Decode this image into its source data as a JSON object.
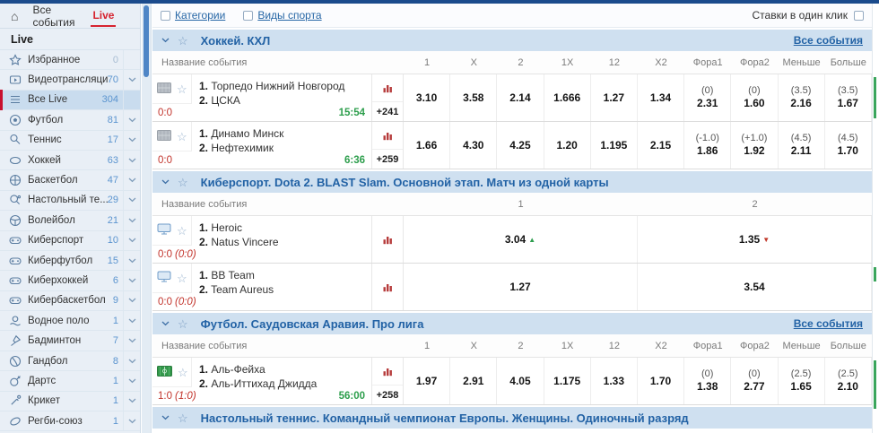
{
  "topbar": {
    "all_events_tab": "Все события",
    "live_tab": "Live"
  },
  "sidebar": {
    "live_label": "Live",
    "items": [
      {
        "icon": "star-icon",
        "label": "Избранное",
        "count": "0",
        "chevron": false,
        "selected": false
      },
      {
        "icon": "video-icon",
        "label": "Видеотрансляция",
        "count": "70",
        "chevron": true,
        "selected": false
      },
      {
        "icon": "list-icon",
        "label": "Все Live",
        "count": "304",
        "chevron": false,
        "selected": true
      },
      {
        "icon": "football-icon",
        "label": "Футбол",
        "count": "81",
        "chevron": true,
        "selected": false
      },
      {
        "icon": "tennis-icon",
        "label": "Теннис",
        "count": "17",
        "chevron": true,
        "selected": false
      },
      {
        "icon": "hockey-icon",
        "label": "Хоккей",
        "count": "63",
        "chevron": true,
        "selected": false
      },
      {
        "icon": "basketball-icon",
        "label": "Баскетбол",
        "count": "47",
        "chevron": true,
        "selected": false
      },
      {
        "icon": "table-tennis-icon",
        "label": "Настольный те...",
        "count": "29",
        "chevron": true,
        "selected": false
      },
      {
        "icon": "volleyball-icon",
        "label": "Волейбол",
        "count": "21",
        "chevron": true,
        "selected": false
      },
      {
        "icon": "gamepad-icon",
        "label": "Киберспорт",
        "count": "10",
        "chevron": true,
        "selected": false
      },
      {
        "icon": "gamepad-icon",
        "label": "Киберфутбол",
        "count": "15",
        "chevron": true,
        "selected": false
      },
      {
        "icon": "gamepad-icon",
        "label": "Киберхоккей",
        "count": "6",
        "chevron": true,
        "selected": false
      },
      {
        "icon": "gamepad-icon",
        "label": "Кибербаскетбол",
        "count": "9",
        "chevron": true,
        "selected": false
      },
      {
        "icon": "waterpolo-icon",
        "label": "Водное поло",
        "count": "1",
        "chevron": true,
        "selected": false
      },
      {
        "icon": "badminton-icon",
        "label": "Бадминтон",
        "count": "7",
        "chevron": true,
        "selected": false
      },
      {
        "icon": "handball-icon",
        "label": "Гандбол",
        "count": "8",
        "chevron": true,
        "selected": false
      },
      {
        "icon": "darts-icon",
        "label": "Дартс",
        "count": "1",
        "chevron": true,
        "selected": false
      },
      {
        "icon": "cricket-icon",
        "label": "Крикет",
        "count": "1",
        "chevron": true,
        "selected": false
      },
      {
        "icon": "rugby-icon",
        "label": "Регби-союз",
        "count": "1",
        "chevron": true,
        "selected": false
      }
    ]
  },
  "filterbar": {
    "categories": "Категории",
    "sports": "Виды спорта",
    "one_click": "Ставки в один клик"
  },
  "colors": {
    "accent_blue": "#2262a5",
    "live_red": "#d6232f",
    "score_red": "#c2332b",
    "time_green": "#2d9e4c",
    "trend_up": "#2e9e4f",
    "trend_down": "#c0392b",
    "section_header_bg": "#cfe0f0"
  },
  "sections": [
    {
      "title": "Хоккей. КХЛ",
      "all_events_link": "Все события",
      "name_column": "Название события",
      "columns": [
        "1",
        "X",
        "2",
        "1X",
        "12",
        "X2",
        "Фора1",
        "Фора2",
        "Меньше",
        "Больше"
      ],
      "matches": [
        {
          "type_icon": "rink-icon",
          "teams": [
            {
              "num": "1.",
              "name": "Торпедо Нижний Новгород"
            },
            {
              "num": "2.",
              "name": "ЦСКА"
            }
          ],
          "score": "0:0",
          "score_detail": "",
          "time": "15:54",
          "more_markets": "+241",
          "odds": [
            {
              "v": "3.10"
            },
            {
              "v": "3.58"
            },
            {
              "v": "2.14"
            },
            {
              "v": "1.666"
            },
            {
              "v": "1.27"
            },
            {
              "v": "1.34"
            },
            {
              "p": "(0)",
              "v": "2.31"
            },
            {
              "p": "(0)",
              "v": "1.60"
            },
            {
              "p": "(3.5)",
              "v": "2.16"
            },
            {
              "p": "(3.5)",
              "v": "1.67"
            }
          ]
        },
        {
          "type_icon": "rink-icon",
          "teams": [
            {
              "num": "1.",
              "name": "Динамо Минск"
            },
            {
              "num": "2.",
              "name": "Нефтехимик"
            }
          ],
          "score": "0:0",
          "score_detail": "",
          "time": "6:36",
          "more_markets": "+259",
          "odds": [
            {
              "v": "1.66"
            },
            {
              "v": "4.30"
            },
            {
              "v": "4.25"
            },
            {
              "v": "1.20"
            },
            {
              "v": "1.195"
            },
            {
              "v": "2.15"
            },
            {
              "p": "(-1.0)",
              "v": "1.86"
            },
            {
              "p": "(+1.0)",
              "v": "1.92"
            },
            {
              "p": "(4.5)",
              "v": "2.11"
            },
            {
              "p": "(4.5)",
              "v": "1.70"
            }
          ]
        }
      ]
    },
    {
      "title": "Киберспорт. Dota 2. BLAST Slam. Основной этап. Матч из одной карты",
      "all_events_link": null,
      "name_column": "Название события",
      "columns": [
        "1",
        "2"
      ],
      "matches": [
        {
          "type_icon": "monitor-icon",
          "teams": [
            {
              "num": "1.",
              "name": "Heroic"
            },
            {
              "num": "2.",
              "name": "Natus Vincere"
            }
          ],
          "score": "0:0",
          "score_detail": "(0:0)",
          "time": "",
          "more_markets": "",
          "odds": [
            {
              "v": "3.04",
              "trend": "up"
            },
            {
              "v": "1.35",
              "trend": "down"
            }
          ]
        },
        {
          "type_icon": "monitor-icon",
          "teams": [
            {
              "num": "1.",
              "name": "BB Team"
            },
            {
              "num": "2.",
              "name": "Team Aureus"
            }
          ],
          "score": "0:0",
          "score_detail": "(0:0)",
          "time": "",
          "more_markets": "",
          "odds": [
            {
              "v": "1.27"
            },
            {
              "v": "3.54"
            }
          ]
        }
      ]
    },
    {
      "title": "Футбол. Саудовская Аравия. Про лига",
      "all_events_link": "Все события",
      "name_column": "Название события",
      "columns": [
        "1",
        "X",
        "2",
        "1X",
        "12",
        "X2",
        "Фора1",
        "Фора2",
        "Меньше",
        "Больше"
      ],
      "matches": [
        {
          "type_icon": "pitch-icon",
          "teams": [
            {
              "num": "1.",
              "name": "Аль-Фейха"
            },
            {
              "num": "2.",
              "name": "Аль-Иттихад Джидда"
            }
          ],
          "score": "1:0",
          "score_detail": "(1:0)",
          "time": "56:00",
          "more_markets": "+258",
          "odds": [
            {
              "v": "1.97"
            },
            {
              "v": "2.91"
            },
            {
              "v": "4.05"
            },
            {
              "v": "1.175"
            },
            {
              "v": "1.33"
            },
            {
              "v": "1.70"
            },
            {
              "p": "(0)",
              "v": "1.38"
            },
            {
              "p": "(0)",
              "v": "2.77"
            },
            {
              "p": "(2.5)",
              "v": "1.65"
            },
            {
              "p": "(2.5)",
              "v": "2.10"
            }
          ]
        }
      ]
    },
    {
      "title": "Настольный теннис. Командный чемпионат Европы. Женщины. Одиночный разряд",
      "all_events_link": null,
      "name_column": null,
      "columns": null,
      "matches": []
    }
  ]
}
